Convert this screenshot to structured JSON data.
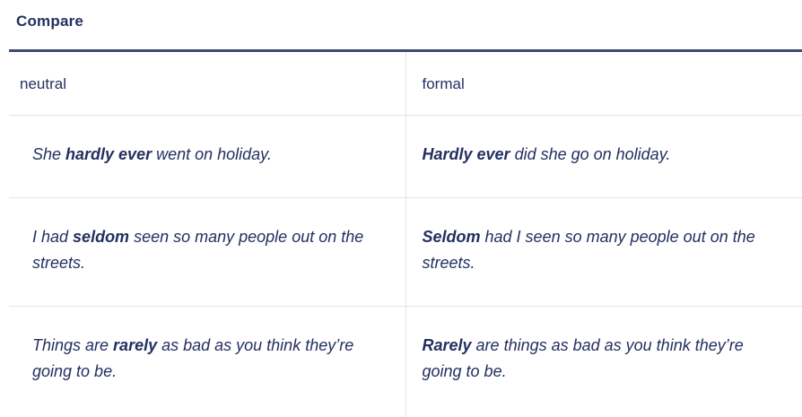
{
  "header": {
    "title": "Compare"
  },
  "table": {
    "columns": [
      {
        "label": "neutral"
      },
      {
        "label": "formal"
      }
    ],
    "rows": [
      {
        "neutral": {
          "pre": "She ",
          "bold": "hardly ever",
          "post": " went on holiday."
        },
        "formal": {
          "pre": "",
          "bold": "Hardly ever",
          "post": " did she go on holiday."
        }
      },
      {
        "neutral": {
          "pre": "I had ",
          "bold": "seldom",
          "post": " seen so many people out on the streets."
        },
        "formal": {
          "pre": "",
          "bold": "Seldom",
          "post": " had I seen so many people out on the streets."
        }
      },
      {
        "neutral": {
          "pre": "Things are ",
          "bold": "rarely",
          "post": " as bad as you think they’re going to be."
        },
        "formal": {
          "pre": "",
          "bold": "Rarely",
          "post": " are things as bad as you think they’re going to be."
        }
      }
    ]
  },
  "colors": {
    "text_navy": "#233061",
    "title_rule_navy": "#3e4a72",
    "divider_gray": "#e3e3e3",
    "footer_bar_gray": "#ebebeb",
    "background": "#ffffff"
  }
}
